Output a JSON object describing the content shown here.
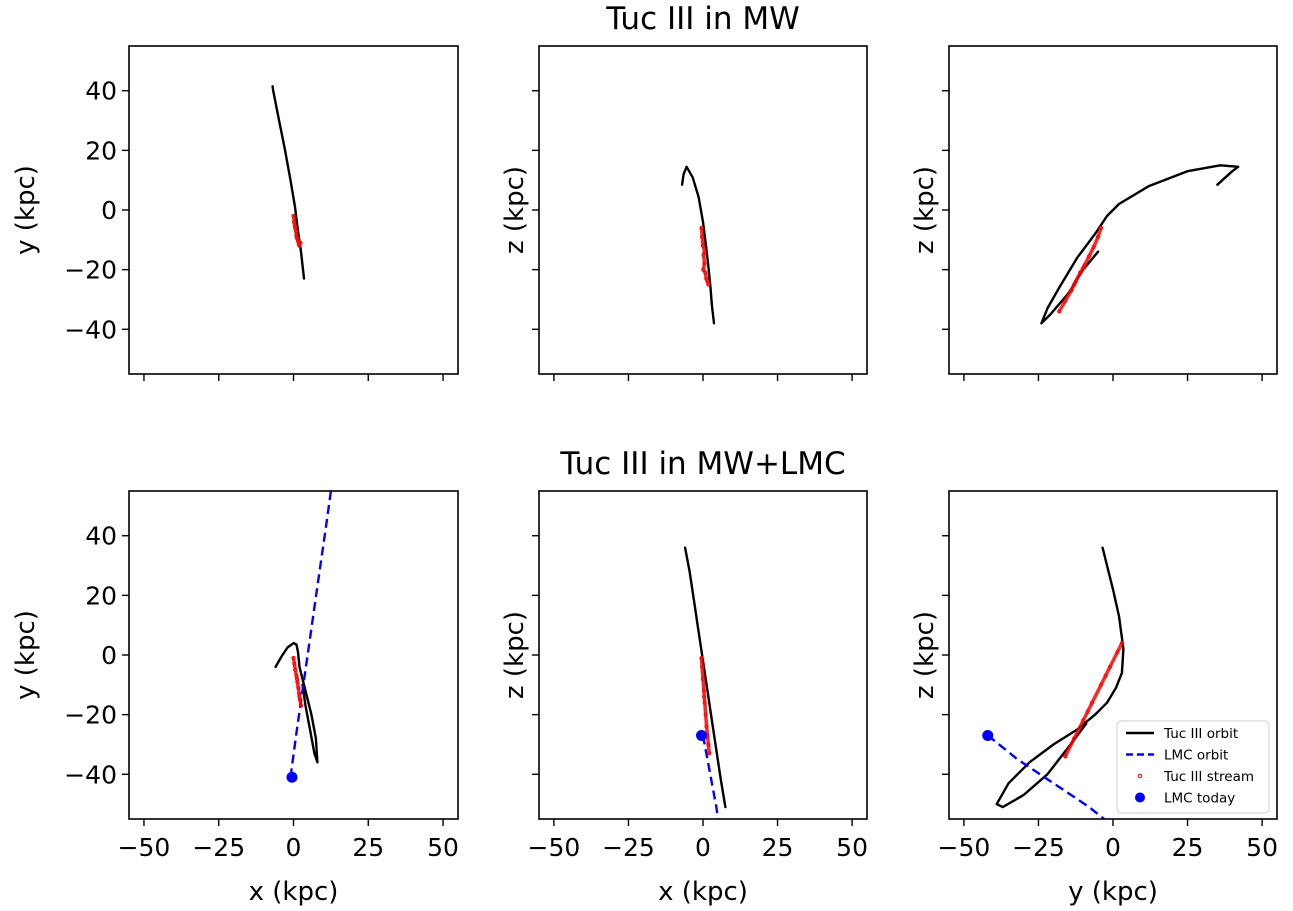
{
  "figure": {
    "row_titles": [
      "Tuc III in MW",
      "Tuc III in MW+LMC"
    ]
  },
  "colors": {
    "tuc_orbit": "#000000",
    "lmc_orbit": "#0000ff",
    "tuc_stream": "#ff0000",
    "lmc_today": "#0000ff",
    "tuc_stream_core": "#000000"
  },
  "legend": {
    "placement": "lower-right of bottom-right panel",
    "entries": [
      {
        "label": "Tuc III orbit",
        "style": "solid-line",
        "color": "#000000"
      },
      {
        "label": "LMC orbit",
        "style": "dashed-line",
        "color": "#0000ff"
      },
      {
        "label": "Tuc III stream",
        "style": "small-open-circle",
        "color": "#ff0000"
      },
      {
        "label": "LMC today",
        "style": "filled-circle",
        "color": "#0000ff"
      }
    ]
  },
  "chart_data": [
    {
      "type": "line",
      "row": "Tuc III in MW",
      "xlabel": "",
      "ylabel": "y (kpc)",
      "xlim": [
        -55,
        55
      ],
      "ylim": [
        -55,
        55
      ],
      "xticks": [
        -50,
        -25,
        0,
        25,
        50
      ],
      "yticks": [
        -40,
        -20,
        0,
        20,
        40
      ],
      "xtick_labels": [
        "",
        "",
        "",
        "",
        ""
      ],
      "ytick_labels": [
        "−40",
        "−20",
        "0",
        "20",
        "40"
      ],
      "series": [
        {
          "name": "Tuc III orbit",
          "style": "solid",
          "color": "#000000",
          "x": [
            -7,
            -6.8,
            -5,
            -3,
            -1,
            0.5,
            1.5,
            2.5,
            3.5
          ],
          "y": [
            41.5,
            40,
            31,
            21,
            10,
            1,
            -7,
            -14,
            -23
          ]
        },
        {
          "name": "Tuc III stream",
          "style": "points",
          "color": "#ff0000",
          "x": [
            0,
            0.2,
            0.5,
            0.8,
            1.0,
            1.2,
            1.5,
            1.8,
            2.0,
            2.3,
            0.6,
            1.1
          ],
          "y": [
            -2,
            -4,
            -5.5,
            -7,
            -8.5,
            -9.5,
            -10.5,
            -11.5,
            -12,
            -11,
            -6,
            -9
          ]
        }
      ]
    },
    {
      "type": "line",
      "row": "Tuc III in MW",
      "xlabel": "",
      "ylabel": "z (kpc)",
      "xlim": [
        -55,
        55
      ],
      "ylim": [
        -55,
        55
      ],
      "xticks": [
        -50,
        -25,
        0,
        25,
        50
      ],
      "yticks": [
        -40,
        -20,
        0,
        20,
        40
      ],
      "xtick_labels": [
        "",
        "",
        "",
        "",
        ""
      ],
      "ytick_labels": [
        "",
        "",
        "",
        "",
        ""
      ],
      "series": [
        {
          "name": "Tuc III orbit",
          "style": "solid",
          "color": "#000000",
          "x": [
            -7,
            -6.5,
            -5.5,
            -3.5,
            -1.5,
            0,
            1,
            1.8,
            2.5,
            3,
            3.7
          ],
          "y": [
            8.5,
            12,
            14.5,
            11,
            4.5,
            -4,
            -12,
            -19,
            -26,
            -32,
            -38
          ]
        },
        {
          "name": "Tuc III stream",
          "style": "points",
          "color": "#ff0000",
          "x": [
            -0.5,
            -0.3,
            0,
            0.2,
            0.5,
            0.8,
            1.1,
            1.5,
            1.8,
            0.1,
            0.6
          ],
          "y": [
            -6,
            -9,
            -12,
            -15,
            -18,
            -21,
            -23,
            -24,
            -25,
            -20,
            -14
          ]
        }
      ]
    },
    {
      "type": "line",
      "row": "Tuc III in MW",
      "xlabel": "",
      "ylabel": "z (kpc)",
      "xlim": [
        -55,
        55
      ],
      "ylim": [
        -55,
        55
      ],
      "xticks": [
        -50,
        -25,
        0,
        25,
        50
      ],
      "yticks": [
        -40,
        -20,
        0,
        20,
        40
      ],
      "xtick_labels": [
        "",
        "",
        "",
        "",
        ""
      ],
      "ytick_labels": [
        "",
        "",
        "",
        "",
        ""
      ],
      "series": [
        {
          "name": "Tuc III orbit",
          "style": "solid",
          "color": "#000000",
          "x": [
            35,
            40,
            42,
            36,
            25,
            12,
            2,
            -2,
            -6,
            -12,
            -18,
            -22,
            -24,
            -21,
            -15,
            -10,
            -5
          ],
          "y": [
            8.5,
            13,
            14.5,
            15,
            13,
            8,
            2,
            -2,
            -8,
            -16,
            -26,
            -33,
            -38,
            -35,
            -28,
            -20,
            -14
          ]
        },
        {
          "name": "Tuc III stream",
          "style": "points",
          "color": "#ff0000",
          "x": [
            -18,
            -16,
            -14,
            -12.5,
            -11,
            -9.5,
            -8,
            -6.5,
            -5,
            -4,
            -10,
            -13
          ],
          "y": [
            -34,
            -30.5,
            -27,
            -24,
            -21,
            -18.5,
            -15.5,
            -12.5,
            -9,
            -6,
            -19.5,
            -25
          ]
        }
      ]
    },
    {
      "type": "line",
      "row": "Tuc III in MW+LMC",
      "xlabel": "x (kpc)",
      "ylabel": "y (kpc)",
      "xlim": [
        -55,
        55
      ],
      "ylim": [
        -55,
        55
      ],
      "xticks": [
        -50,
        -25,
        0,
        25,
        50
      ],
      "yticks": [
        -40,
        -20,
        0,
        20,
        40
      ],
      "xtick_labels": [
        "−50",
        "−25",
        "0",
        "25",
        "50"
      ],
      "ytick_labels": [
        "−40",
        "−20",
        "0",
        "20",
        "40"
      ],
      "series": [
        {
          "name": "Tuc III orbit",
          "style": "solid",
          "color": "#000000",
          "x": [
            -6,
            -4,
            -2,
            0,
            1,
            1.5,
            2,
            3,
            4,
            6,
            7.5,
            8,
            7,
            5.5,
            4,
            3
          ],
          "y": [
            -4,
            -0.5,
            2.5,
            4,
            3.5,
            1,
            -4,
            -8,
            -12,
            -20,
            -28,
            -36,
            -33,
            -25,
            -17,
            -10
          ]
        },
        {
          "name": "LMC orbit",
          "style": "dashed",
          "color": "#0000ff",
          "x": [
            -1,
            1,
            3,
            5,
            7,
            9,
            11,
            12.5
          ],
          "y": [
            -41,
            -26,
            -12,
            2,
            16,
            30,
            44,
            55
          ]
        },
        {
          "name": "Tuc III stream",
          "style": "points",
          "color": "#ff0000",
          "x": [
            0,
            0.3,
            0.6,
            1.0,
            1.3,
            1.6,
            1.9,
            2.2,
            2.5,
            2.0,
            1.2
          ],
          "y": [
            -1,
            -3,
            -5,
            -7,
            -9,
            -11,
            -13,
            -15,
            -17,
            -14,
            -8
          ]
        },
        {
          "name": "LMC today",
          "style": "marker",
          "color": "#0000ff",
          "x": [
            -0.5
          ],
          "y": [
            -41
          ]
        }
      ]
    },
    {
      "type": "line",
      "row": "Tuc III in MW+LMC",
      "xlabel": "x (kpc)",
      "ylabel": "z (kpc)",
      "xlim": [
        -55,
        55
      ],
      "ylim": [
        -55,
        55
      ],
      "xticks": [
        -50,
        -25,
        0,
        25,
        50
      ],
      "yticks": [
        -40,
        -20,
        0,
        20,
        40
      ],
      "xtick_labels": [
        "−50",
        "−25",
        "0",
        "25",
        "50"
      ],
      "ytick_labels": [
        "",
        "",
        "",
        "",
        ""
      ],
      "series": [
        {
          "name": "Tuc III orbit",
          "style": "solid",
          "color": "#000000",
          "x": [
            -6,
            -4.5,
            -3,
            -1.5,
            0,
            1.5,
            3,
            4.5,
            6,
            7.5
          ],
          "y": [
            36,
            28,
            18,
            8,
            -2,
            -12,
            -22,
            -32,
            -42,
            -51
          ]
        },
        {
          "name": "LMC orbit",
          "style": "dashed",
          "color": "#0000ff",
          "x": [
            0,
            1.5,
            3,
            4.5,
            5
          ],
          "y": [
            -27,
            -35,
            -43,
            -51,
            -55
          ]
        },
        {
          "name": "Tuc III stream",
          "style": "points",
          "color": "#ff0000",
          "x": [
            -0.5,
            -0.3,
            0,
            0.3,
            0.6,
            0.9,
            1.2,
            1.5,
            1.8,
            2.1,
            0.4
          ],
          "y": [
            -1,
            -4,
            -8,
            -12,
            -16,
            -20,
            -24,
            -27,
            -30,
            -33,
            -14
          ]
        },
        {
          "name": "LMC today",
          "style": "marker",
          "color": "#0000ff",
          "x": [
            -0.5
          ],
          "y": [
            -27
          ]
        }
      ]
    },
    {
      "type": "line",
      "row": "Tuc III in MW+LMC",
      "xlabel": "y (kpc)",
      "ylabel": "z (kpc)",
      "xlim": [
        -55,
        55
      ],
      "ylim": [
        -55,
        55
      ],
      "xticks": [
        -50,
        -25,
        0,
        25,
        50
      ],
      "yticks": [
        -40,
        -20,
        0,
        20,
        40
      ],
      "xtick_labels": [
        "−50",
        "−25",
        "0",
        "25",
        "50"
      ],
      "ytick_labels": [
        "",
        "",
        "",
        "",
        ""
      ],
      "series": [
        {
          "name": "Tuc III orbit",
          "style": "solid",
          "color": "#000000",
          "x": [
            -3.5,
            -2,
            0,
            2,
            3.5,
            3,
            1,
            -2,
            -6,
            -12,
            -20,
            -28,
            -35,
            -39,
            -37,
            -30,
            -22,
            -15,
            -9
          ],
          "y": [
            36,
            30,
            22,
            13,
            2,
            -6,
            -11,
            -16,
            -20,
            -25,
            -30,
            -36,
            -43,
            -50,
            -51,
            -47,
            -40,
            -31,
            -23
          ]
        },
        {
          "name": "LMC orbit",
          "style": "dashed",
          "color": "#0000ff",
          "x": [
            -42,
            -37,
            -32,
            -26,
            -20,
            -14,
            -8,
            -3
          ],
          "y": [
            -27,
            -31,
            -35,
            -39,
            -43,
            -47,
            -51,
            -55
          ]
        },
        {
          "name": "Tuc III stream",
          "style": "points",
          "color": "#ff0000",
          "x": [
            -16,
            -13,
            -10,
            -7,
            -4,
            -1,
            1.5,
            3,
            -8.5,
            -2.5
          ],
          "y": [
            -34,
            -28,
            -22,
            -16,
            -10,
            -4,
            1,
            4,
            -19,
            -7
          ]
        },
        {
          "name": "LMC today",
          "style": "marker",
          "color": "#0000ff",
          "x": [
            -42
          ],
          "y": [
            -27
          ]
        }
      ]
    }
  ]
}
